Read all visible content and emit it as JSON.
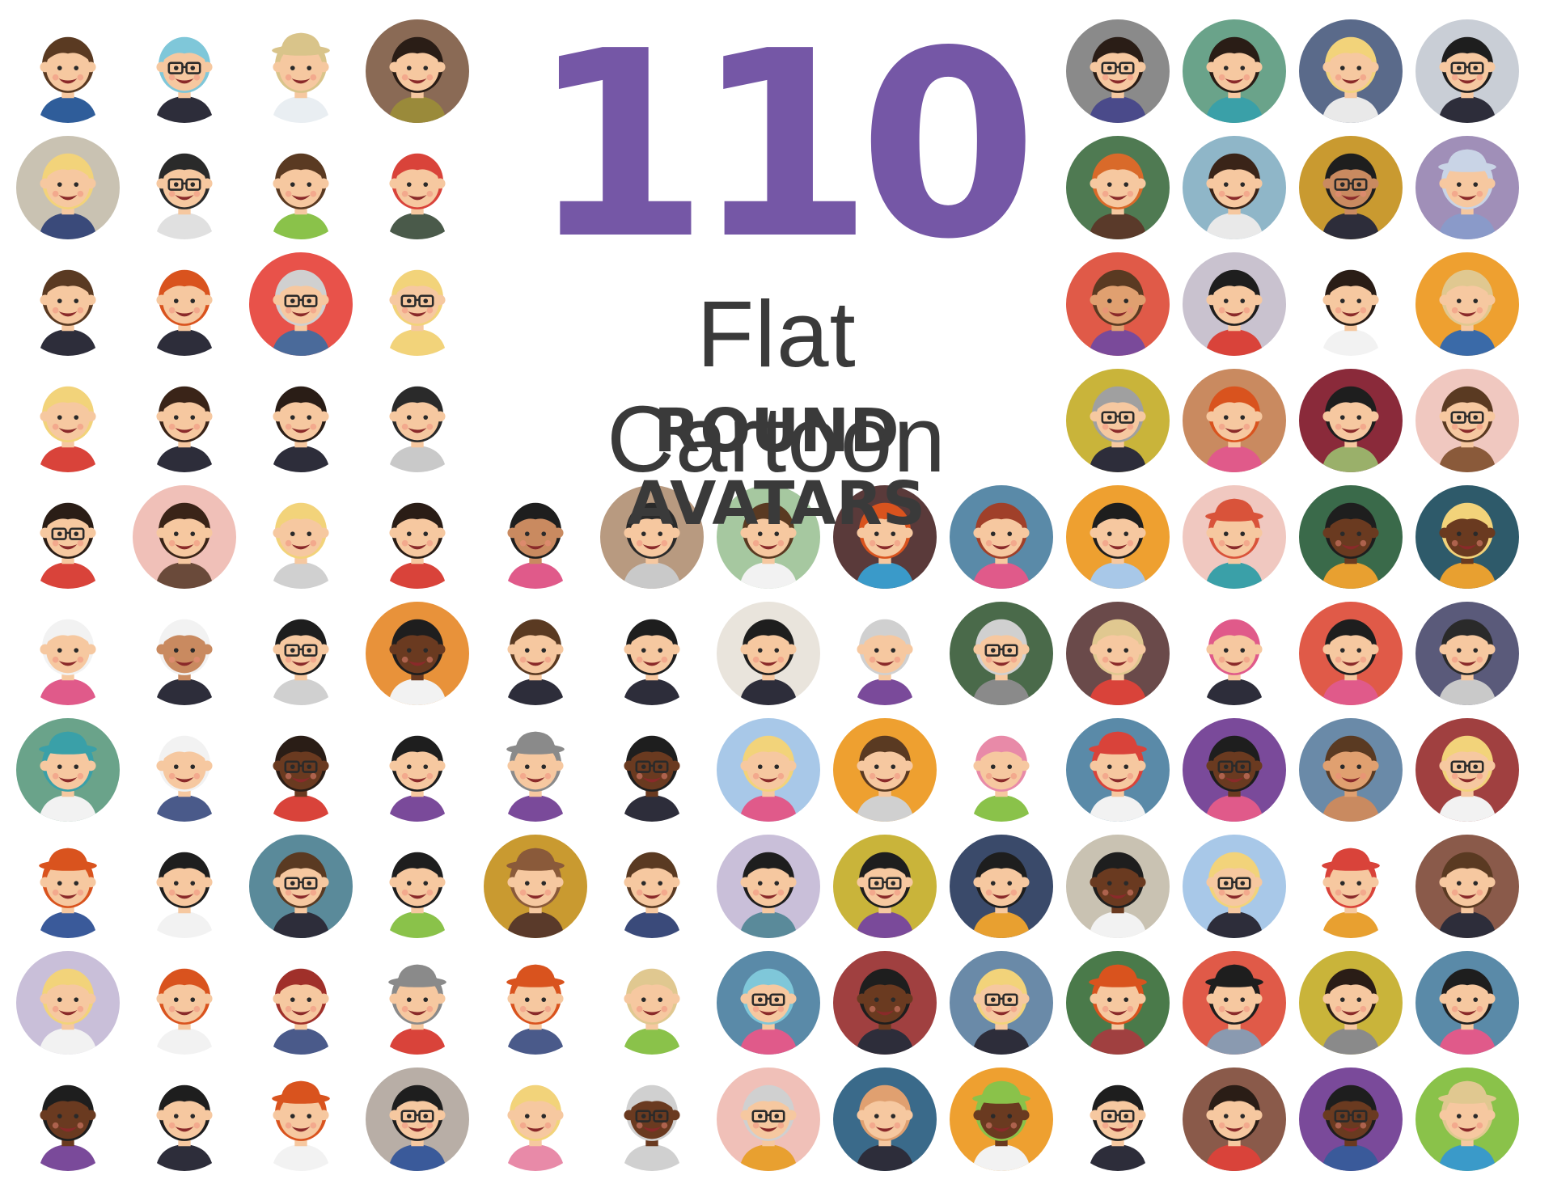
{
  "title": {
    "number": "110",
    "line1": "Flat Cartoon",
    "line2": "ROUND AVATARS"
  },
  "colors": {
    "title_accent": "#7557a6",
    "text": "#3a3a3a",
    "background": "#ffffff"
  },
  "avatars": [
    {
      "bg": null,
      "hair": "#5a3a22",
      "skin": "#f6c8a0",
      "shirt": "#2f5d9a"
    },
    {
      "bg": null,
      "hair": "#7fc7d9",
      "skin": "#f6c8a0",
      "shirt": "#2d2d3a",
      "glasses": true
    },
    {
      "bg": null,
      "hair": "#d9c48a",
      "skin": "#f6c8a0",
      "shirt": "#e9eef2",
      "hat": true
    },
    {
      "bg": "#8a6a55",
      "hair": "#2a1d16",
      "skin": "#f6c8a0",
      "shirt": "#9a8a3a"
    },
    {
      "bg": "#8a8a8a",
      "hair": "#2a1d16",
      "skin": "#f6c8a0",
      "shirt": "#4a4a8a",
      "glasses": true
    },
    {
      "bg": "#6aa38a",
      "hair": "#2a1d16",
      "skin": "#f6c8a0",
      "shirt": "#3aa0a8"
    },
    {
      "bg": "#5a6a8a",
      "hair": "#f2d37a",
      "skin": "#f6c8a0",
      "shirt": "#e9e9e9"
    },
    {
      "bg": "#c9ced6",
      "hair": "#1e1e1e",
      "skin": "#f6c8a0",
      "shirt": "#2d2d3a",
      "glasses": true
    },
    {
      "bg": "#c9c2b2",
      "hair": "#f2d37a",
      "skin": "#f6c8a0",
      "shirt": "#3a4a7a"
    },
    {
      "bg": null,
      "hair": "#2a2a2a",
      "skin": "#f6c8a0",
      "shirt": "#e0e0e0",
      "glasses": true
    },
    {
      "bg": null,
      "hair": "#5a3a22",
      "skin": "#f6c8a0",
      "shirt": "#8ac24a"
    },
    {
      "bg": null,
      "hair": "#d9433a",
      "skin": "#f6c8a0",
      "shirt": "#4a5a4a"
    },
    {
      "bg": "#4f7a52",
      "hair": "#d96a2a",
      "skin": "#f6c8a0",
      "shirt": "#5a3a2a"
    },
    {
      "bg": "#8fb6c8",
      "hair": "#3a2418",
      "skin": "#f6c8a0",
      "shirt": "#e9e9e9"
    },
    {
      "bg": "#c99a30",
      "hair": "#1e1e1e",
      "skin": "#c98a60",
      "shirt": "#2d2d3a",
      "glasses": true
    },
    {
      "bg": "#a08fb8",
      "hair": "#c9d4e6",
      "skin": "#f6c8a0",
      "shirt": "#8a9ac9",
      "hat": true
    },
    {
      "bg": null,
      "hair": "#5a3a22",
      "skin": "#f6c8a0",
      "shirt": "#2d2d3a"
    },
    {
      "bg": null,
      "hair": "#d9531e",
      "skin": "#f6c8a0",
      "shirt": "#2d2d3a"
    },
    {
      "bg": "#e8524a",
      "hair": "#d0d0d0",
      "skin": "#f6c8a0",
      "shirt": "#4a6a9a",
      "glasses": true
    },
    {
      "bg": null,
      "hair": "#f2d37a",
      "skin": "#f6c8a0",
      "shirt": "#f2d37a",
      "glasses": true
    },
    {
      "bg": "#e05a48",
      "hair": "#5a3a22",
      "skin": "#e0a070",
      "shirt": "#7a4a9a"
    },
    {
      "bg": "#c9c2cf",
      "hair": "#1e1e1e",
      "skin": "#f6c8a0",
      "shirt": "#d9433a"
    },
    {
      "bg": null,
      "hair": "#2a1d16",
      "skin": "#f6c8a0",
      "shirt": "#f2f2f2"
    },
    {
      "bg": "#eea030",
      "hair": "#e0c890",
      "skin": "#f6c8a0",
      "shirt": "#3a6aa8"
    },
    {
      "bg": null,
      "hair": "#f2d37a",
      "skin": "#f6c8a0",
      "shirt": "#d9433a"
    },
    {
      "bg": null,
      "hair": "#3a2418",
      "skin": "#f6c8a0",
      "shirt": "#2d2d3a"
    },
    {
      "bg": null,
      "hair": "#2a1d16",
      "skin": "#f6c8a0",
      "shirt": "#2d2d3a"
    },
    {
      "bg": null,
      "hair": "#2a2a2a",
      "skin": "#f6c8a0",
      "shirt": "#c9c9c9"
    },
    {
      "bg": "#c9b43a",
      "hair": "#a0a0a0",
      "skin": "#f6c8a0",
      "shirt": "#2d2d3a",
      "glasses": true
    },
    {
      "bg": "#c98a60",
      "hair": "#d9531e",
      "skin": "#f6c8a0",
      "shirt": "#e05a8a"
    },
    {
      "bg": "#8a2a3a",
      "hair": "#1e1e1e",
      "skin": "#f6c8a0",
      "shirt": "#9ab06a"
    },
    {
      "bg": "#f0c8c0",
      "hair": "#5a3a22",
      "skin": "#f6c8a0",
      "shirt": "#8a5a3a",
      "glasses": true
    },
    {
      "bg": null,
      "hair": "#2a1d16",
      "skin": "#f6c8a0",
      "shirt": "#d9433a",
      "glasses": true
    },
    {
      "bg": "#f0c0b8",
      "hair": "#3a2418",
      "skin": "#f6c8a0",
      "shirt": "#6a4a3a"
    },
    {
      "bg": null,
      "hair": "#f2d37a",
      "skin": "#f6c8a0",
      "shirt": "#d0d0d0"
    },
    {
      "bg": null,
      "hair": "#2a1d16",
      "skin": "#f6c8a0",
      "shirt": "#d9433a"
    },
    {
      "bg": null,
      "hair": "#1e1e1e",
      "skin": "#c98a60",
      "shirt": "#e05a8a"
    },
    {
      "bg": "#b89a80",
      "hair": "#2a2a2a",
      "skin": "#f6c8a0",
      "shirt": "#c9c9c9"
    },
    {
      "bg": "#a6c8a0",
      "hair": "#5a3a22",
      "skin": "#f6c8a0",
      "shirt": "#f2f2f2"
    },
    {
      "bg": "#5a3a3a",
      "hair": "#d9531e",
      "skin": "#f6c8a0",
      "shirt": "#3a9ac9"
    },
    {
      "bg": "#5a8aa8",
      "hair": "#a0402a",
      "skin": "#f6c8a0",
      "shirt": "#e05a8a"
    },
    {
      "bg": "#eea030",
      "hair": "#1e1e1e",
      "skin": "#f6c8a0",
      "shirt": "#a8c8e8"
    },
    {
      "bg": "#f0c8c0",
      "hair": "#d9533a",
      "skin": "#f6c8a0",
      "shirt": "#3aa0a8",
      "hat": true
    },
    {
      "bg": "#3a6a4a",
      "hair": "#1e1e1e",
      "skin": "#6a3a20",
      "shirt": "#e8a030"
    },
    {
      "bg": "#2e5a6a",
      "hair": "#f2d37a",
      "skin": "#6a3a20",
      "shirt": "#e8a030"
    },
    {
      "bg": null,
      "hair": "#f2f2f2",
      "skin": "#f6c8a0",
      "shirt": "#e05a8a"
    },
    {
      "bg": null,
      "hair": "#f2f2f2",
      "skin": "#c98a60",
      "shirt": "#2d2d3a"
    },
    {
      "bg": null,
      "hair": "#1e1e1e",
      "skin": "#f6c8a0",
      "shirt": "#d0d0d0",
      "glasses": true
    },
    {
      "bg": "#e8923a",
      "hair": "#1e1e1e",
      "skin": "#6a3a20",
      "shirt": "#f2f2f2"
    },
    {
      "bg": null,
      "hair": "#5a3a22",
      "skin": "#f6c8a0",
      "shirt": "#2d2d3a"
    },
    {
      "bg": null,
      "hair": "#1e1e1e",
      "skin": "#f6c8a0",
      "shirt": "#2d2d3a"
    },
    {
      "bg": "#e9e4dc",
      "hair": "#1e1e1e",
      "skin": "#f6c8a0",
      "shirt": "#2d2d3a"
    },
    {
      "bg": null,
      "hair": "#d0d0d0",
      "skin": "#f6c8a0",
      "shirt": "#7a4a9a"
    },
    {
      "bg": "#4a6a4a",
      "hair": "#d0d0d0",
      "skin": "#f6c8a0",
      "shirt": "#8a8a8a",
      "glasses": true
    },
    {
      "bg": "#6a4a4a",
      "hair": "#e0c890",
      "skin": "#f6c8a0",
      "shirt": "#d9433a"
    },
    {
      "bg": null,
      "hair": "#e05a8a",
      "skin": "#f6c8a0",
      "shirt": "#2d2d3a"
    },
    {
      "bg": "#e05a48",
      "hair": "#1e1e1e",
      "skin": "#f6c8a0",
      "shirt": "#e05a8a"
    },
    {
      "bg": "#5a5a7a",
      "hair": "#2a2a2a",
      "skin": "#f6c8a0",
      "shirt": "#c9c9c9"
    },
    {
      "bg": "#6aa38a",
      "hair": "#3aa0a8",
      "skin": "#f6c8a0",
      "shirt": "#f2f2f2",
      "hat": true
    },
    {
      "bg": null,
      "hair": "#f2f2f2",
      "skin": "#f6c8a0",
      "shirt": "#4a5a8a"
    },
    {
      "bg": null,
      "hair": "#2a1d16",
      "skin": "#6a3a20",
      "shirt": "#d9433a",
      "glasses": true
    },
    {
      "bg": null,
      "hair": "#1e1e1e",
      "skin": "#f6c8a0",
      "shirt": "#7a4a9a"
    },
    {
      "bg": null,
      "hair": "#8a8a8a",
      "skin": "#f6c8a0",
      "shirt": "#7a4a9a",
      "hat": true
    },
    {
      "bg": null,
      "hair": "#1e1e1e",
      "skin": "#6a3a20",
      "shirt": "#2d2d3a",
      "glasses": true
    },
    {
      "bg": "#a8c8e8",
      "hair": "#f2d37a",
      "skin": "#f6c8a0",
      "shirt": "#e05a8a"
    },
    {
      "bg": "#eea030",
      "hair": "#5a3a22",
      "skin": "#f6c8a0",
      "shirt": "#d0d0d0"
    },
    {
      "bg": null,
      "hair": "#e88aa8",
      "skin": "#f6c8a0",
      "shirt": "#8ac24a"
    },
    {
      "bg": "#5a8aa8",
      "hair": "#d9433a",
      "skin": "#f6c8a0",
      "shirt": "#f2f2f2",
      "hat": true
    },
    {
      "bg": "#7a4a9a",
      "hair": "#1e1e1e",
      "skin": "#6a3a20",
      "shirt": "#e05a8a",
      "glasses": true
    },
    {
      "bg": "#6a8aa8",
      "hair": "#5a3a22",
      "skin": "#e0a070",
      "shirt": "#c98a60"
    },
    {
      "bg": "#a04040",
      "hair": "#f2d37a",
      "skin": "#f6c8a0",
      "shirt": "#f2f2f2",
      "glasses": true
    },
    {
      "bg": null,
      "hair": "#d9531e",
      "skin": "#f6c8a0",
      "shirt": "#3a5a9a",
      "hat": true
    },
    {
      "bg": null,
      "hair": "#1e1e1e",
      "skin": "#f6c8a0",
      "shirt": "#f2f2f2"
    },
    {
      "bg": "#5a8a9a",
      "hair": "#5a3a22",
      "skin": "#f6c8a0",
      "shirt": "#2d2d3a",
      "glasses": true
    },
    {
      "bg": null,
      "hair": "#1e1e1e",
      "skin": "#f6c8a0",
      "shirt": "#8ac24a"
    },
    {
      "bg": "#c99a30",
      "hair": "#8a5a3a",
      "skin": "#f6c8a0",
      "shirt": "#5a3a2a",
      "hat": true
    },
    {
      "bg": null,
      "hair": "#5a3a22",
      "skin": "#f6c8a0",
      "shirt": "#3a4a7a"
    },
    {
      "bg": "#c9bfd9",
      "hair": "#1e1e1e",
      "skin": "#f6c8a0",
      "shirt": "#5a8a9a"
    },
    {
      "bg": "#c9b43a",
      "hair": "#1e1e1e",
      "skin": "#f6c8a0",
      "shirt": "#7a4a9a",
      "glasses": true
    },
    {
      "bg": "#3a4a6a",
      "hair": "#1e1e1e",
      "skin": "#f6c8a0",
      "shirt": "#e8a030"
    },
    {
      "bg": "#c9c2b2",
      "hair": "#1e1e1e",
      "skin": "#6a3a20",
      "shirt": "#f2f2f2"
    },
    {
      "bg": "#a8c8e8",
      "hair": "#f2d37a",
      "skin": "#f6c8a0",
      "shirt": "#2d2d3a",
      "glasses": true
    },
    {
      "bg": null,
      "hair": "#d9433a",
      "skin": "#f6c8a0",
      "shirt": "#e8a030",
      "hat": true
    },
    {
      "bg": "#8a5a4a",
      "hair": "#5a3a22",
      "skin": "#f6c8a0",
      "shirt": "#2d2d3a"
    },
    {
      "bg": "#c9bfd9",
      "hair": "#f2d37a",
      "skin": "#f6c8a0",
      "shirt": "#f2f2f2"
    },
    {
      "bg": null,
      "hair": "#d9531e",
      "skin": "#f6c8a0",
      "shirt": "#f2f2f2"
    },
    {
      "bg": null,
      "hair": "#a0302a",
      "skin": "#f6c8a0",
      "shirt": "#4a5a8a"
    },
    {
      "bg": null,
      "hair": "#8a8a8a",
      "skin": "#f6c8a0",
      "shirt": "#d9433a",
      "hat": true
    },
    {
      "bg": null,
      "hair": "#d9531e",
      "skin": "#f6c8a0",
      "shirt": "#4a5a8a",
      "hat": true
    },
    {
      "bg": null,
      "hair": "#e0c890",
      "skin": "#f6c8a0",
      "shirt": "#8ac24a"
    },
    {
      "bg": "#5a8aa8",
      "hair": "#7fc7d9",
      "skin": "#f6c8a0",
      "shirt": "#e05a8a",
      "glasses": true
    },
    {
      "bg": "#a04040",
      "hair": "#1e1e1e",
      "skin": "#6a3a20",
      "shirt": "#2d2d3a"
    },
    {
      "bg": "#6a8aa8",
      "hair": "#f2d37a",
      "skin": "#f6c8a0",
      "shirt": "#2d2d3a",
      "glasses": true
    },
    {
      "bg": "#4a7a4a",
      "hair": "#d9531e",
      "skin": "#f6c8a0",
      "shirt": "#a04040",
      "hat": true
    },
    {
      "bg": "#e05a48",
      "hair": "#1e1e1e",
      "skin": "#f6c8a0",
      "shirt": "#8a9ab0",
      "hat": true
    },
    {
      "bg": "#c9b43a",
      "hair": "#2a1d16",
      "skin": "#f6c8a0",
      "shirt": "#8a8a8a"
    },
    {
      "bg": "#5a8aa8",
      "hair": "#1e1e1e",
      "skin": "#f6c8a0",
      "shirt": "#e05a8a"
    },
    {
      "bg": null,
      "hair": "#1e1e1e",
      "skin": "#6a3a20",
      "shirt": "#7a4a9a"
    },
    {
      "bg": null,
      "hair": "#1e1e1e",
      "skin": "#f6c8a0",
      "shirt": "#2d2d3a"
    },
    {
      "bg": null,
      "hair": "#d9531e",
      "skin": "#f6c8a0",
      "shirt": "#f2f2f2",
      "hat": true
    },
    {
      "bg": "#b8aea6",
      "hair": "#1e1e1e",
      "skin": "#f6c8a0",
      "shirt": "#3a5a9a",
      "glasses": true
    },
    {
      "bg": null,
      "hair": "#f2d37a",
      "skin": "#f6c8a0",
      "shirt": "#e88aa8"
    },
    {
      "bg": null,
      "hair": "#d0d0d0",
      "skin": "#6a3a20",
      "shirt": "#d0d0d0",
      "glasses": true
    },
    {
      "bg": "#f0c0b8",
      "hair": "#d0d0d0",
      "skin": "#f6c8a0",
      "shirt": "#e8a030",
      "glasses": true
    },
    {
      "bg": "#3a6a8a",
      "hair": "#e0a070",
      "skin": "#f6c8a0",
      "shirt": "#2d2d3a"
    },
    {
      "bg": "#eea030",
      "hair": "#8ac24a",
      "skin": "#6a3a20",
      "shirt": "#f2f2f2",
      "hat": true
    },
    {
      "bg": null,
      "hair": "#1e1e1e",
      "skin": "#f6c8a0",
      "shirt": "#2d2d3a",
      "glasses": true
    },
    {
      "bg": "#8a5a4a",
      "hair": "#2a1d16",
      "skin": "#f6c8a0",
      "shirt": "#d9433a"
    },
    {
      "bg": "#7a4a9a",
      "hair": "#1e1e1e",
      "skin": "#6a3a20",
      "shirt": "#3a5a9a",
      "glasses": true
    },
    {
      "bg": "#8ac24a",
      "hair": "#e0c890",
      "skin": "#f6c8a0",
      "shirt": "#3a9ac9",
      "hat": true
    }
  ]
}
